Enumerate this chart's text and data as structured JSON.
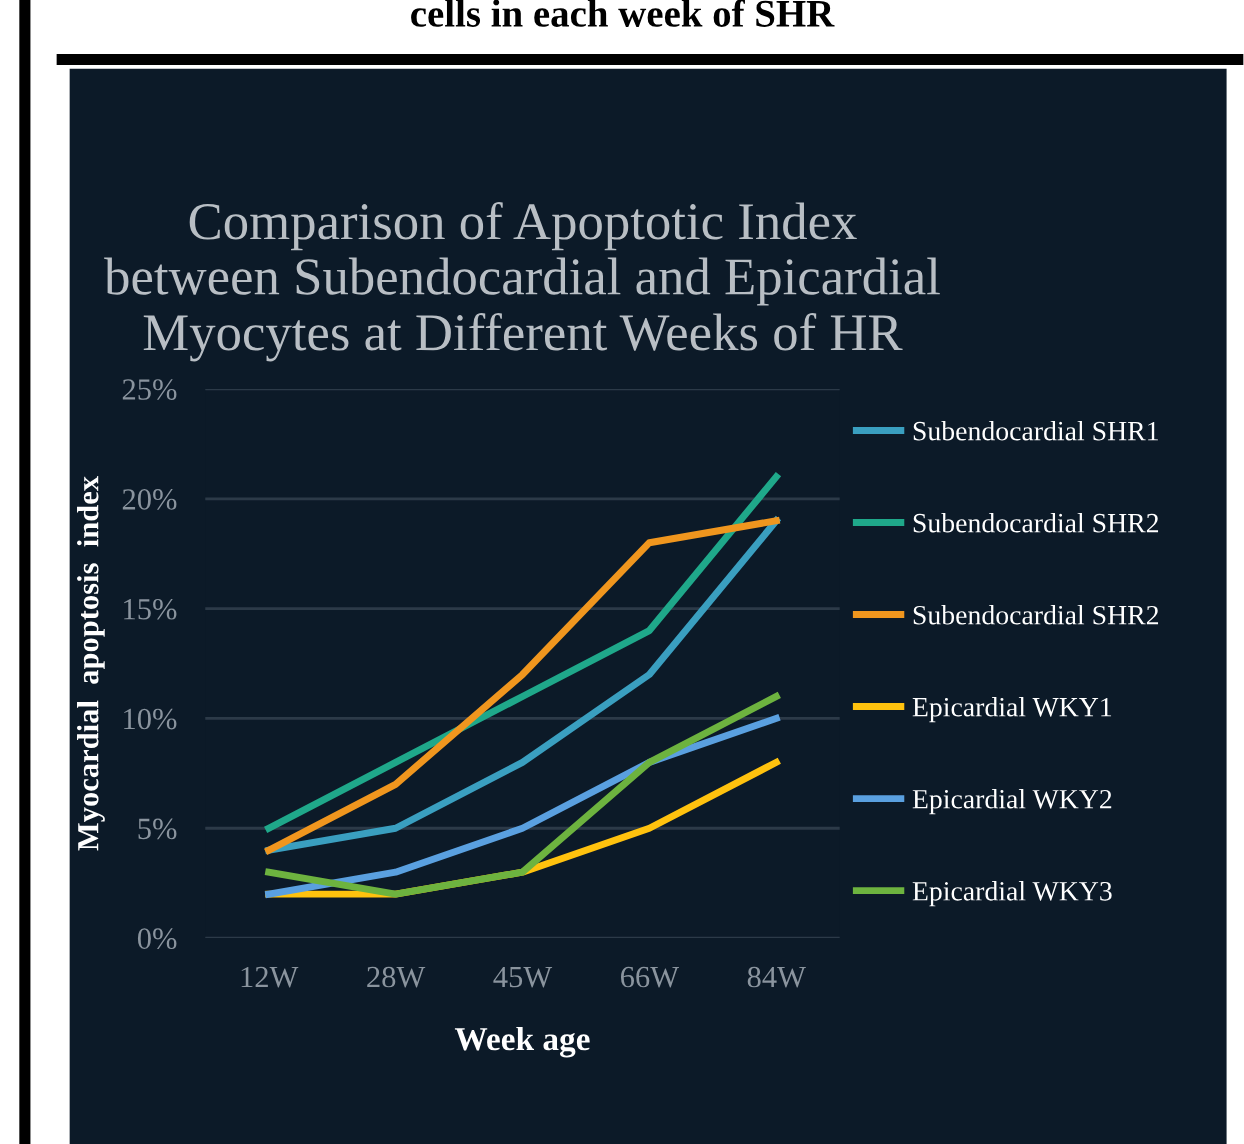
{
  "chart_data": {
    "type": "line",
    "title": "Comparison of Apoptotic Index\nbetween Subendocardial and Epicardial\nMyocytes at Different Weeks of HR",
    "xlabel": "Week age",
    "ylabel": "Myocardial  apoptosis  index",
    "annotations": [
      "cells in each week of SHR"
    ],
    "categories": [
      "12W",
      "28W",
      "45W",
      "66W",
      "84W"
    ],
    "series": [
      {
        "name": "Subendocardial SHR1",
        "color": "#3a9fc0",
        "values": [
          4,
          5,
          8,
          12,
          19
        ]
      },
      {
        "name": "Subendocardial SHR2",
        "color": "#1fa88a",
        "values": [
          5,
          8,
          11,
          14,
          21
        ]
      },
      {
        "name": "Subendocardial SHR2",
        "color": "#f0961e",
        "values": [
          4,
          7,
          12,
          18,
          19
        ]
      },
      {
        "name": "Epicardial WKY1",
        "color": "#ffc20e",
        "values": [
          2,
          2,
          3,
          5,
          8
        ]
      },
      {
        "name": "Epicardial WKY2",
        "color": "#5aa0e0",
        "values": [
          2,
          3,
          5,
          8,
          10
        ]
      },
      {
        "name": "Epicardial WKY3",
        "color": "#6db33f",
        "values": [
          3,
          2,
          3,
          8,
          11
        ]
      }
    ],
    "ylim": [
      0,
      25
    ],
    "yticks": [
      {
        "value": 0,
        "label": "0%"
      },
      {
        "value": 5,
        "label": "5%"
      },
      {
        "value": 10,
        "label": "10%"
      },
      {
        "value": 15,
        "label": "15%"
      },
      {
        "value": 20,
        "label": "20%"
      },
      {
        "value": 25,
        "label": "25%"
      }
    ],
    "grid": "y",
    "legend": "right",
    "marker": "none",
    "line_style": "solid"
  }
}
